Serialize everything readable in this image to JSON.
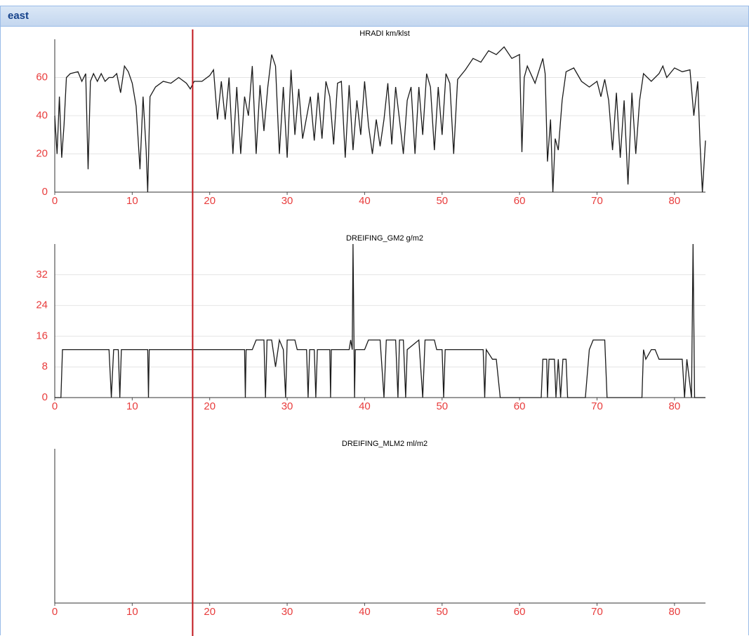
{
  "panel": {
    "title": "east"
  },
  "cursor_x": 17.8,
  "chart_data": [
    {
      "type": "line",
      "title": "HRADI km/klst",
      "x": [
        0,
        0.3,
        0.6,
        0.9,
        1.2,
        1.5,
        2,
        3,
        3.5,
        4,
        4.3,
        4.6,
        5,
        5.5,
        6,
        6.5,
        7,
        7.5,
        8,
        8.5,
        9,
        9.5,
        10,
        10.5,
        11,
        11.4,
        11.8,
        12,
        12.3,
        13,
        14,
        15,
        16,
        17,
        17.5,
        18,
        19,
        20,
        20.5,
        21,
        21.5,
        22,
        22.5,
        23,
        23.5,
        24,
        24.5,
        25,
        25.5,
        26,
        26.5,
        27,
        27.5,
        28,
        28.5,
        29,
        29.5,
        30,
        30.5,
        31,
        31.5,
        32,
        33,
        33.5,
        34,
        34.5,
        35,
        35.5,
        36,
        36.5,
        37,
        37.5,
        38,
        38.5,
        39,
        39.5,
        40,
        40.5,
        41,
        41.5,
        42,
        42.5,
        43,
        43.5,
        44,
        44.5,
        45,
        45.5,
        46,
        46.5,
        47,
        47.5,
        48,
        48.5,
        49,
        49.5,
        50,
        50.5,
        51,
        51.5,
        52,
        53,
        54,
        55,
        56,
        57,
        58,
        59,
        60,
        60.3,
        60.6,
        61,
        62,
        63,
        63.3,
        63.6,
        64,
        64.3,
        64.6,
        65,
        65.5,
        66,
        67,
        68,
        69,
        70,
        70.5,
        71,
        71.5,
        72,
        72.5,
        73,
        73.5,
        74,
        74.5,
        75,
        75.5,
        76,
        77,
        78,
        78.5,
        79,
        80,
        81,
        82,
        82.5,
        83,
        83.3,
        83.6,
        84
      ],
      "series": [
        {
          "name": "HRADI",
          "color": "#1a1a1a",
          "values": [
            40,
            20,
            50,
            18,
            35,
            60,
            62,
            63,
            58,
            62,
            12,
            58,
            62,
            58,
            62,
            58,
            60,
            60,
            62,
            52,
            66,
            63,
            57,
            45,
            12,
            50,
            22,
            0,
            50,
            55,
            58,
            57,
            60,
            57,
            54,
            58,
            58,
            61,
            64,
            38,
            58,
            38,
            60,
            20,
            55,
            20,
            50,
            40,
            66,
            20,
            56,
            32,
            55,
            72,
            66,
            20,
            55,
            18,
            64,
            30,
            54,
            28,
            50,
            27,
            52,
            28,
            58,
            50,
            25,
            57,
            58,
            18,
            56,
            22,
            48,
            30,
            58,
            35,
            20,
            38,
            24,
            38,
            57,
            25,
            55,
            38,
            20,
            48,
            55,
            20,
            55,
            30,
            62,
            55,
            22,
            55,
            30,
            62,
            57,
            20,
            59,
            64,
            70,
            68,
            74,
            72,
            76,
            70,
            72,
            21,
            60,
            66,
            57,
            70,
            62,
            16,
            38,
            0,
            28,
            22,
            48,
            63,
            65,
            58,
            55,
            58,
            50,
            59,
            48,
            22,
            52,
            18,
            48,
            4,
            52,
            20,
            48,
            62,
            58,
            62,
            66,
            60,
            65,
            63,
            64,
            40,
            58,
            25,
            0,
            27
          ]
        }
      ],
      "xlim": [
        0,
        84
      ],
      "xticks": [
        0,
        10,
        20,
        30,
        40,
        50,
        60,
        70,
        80
      ],
      "ylim": [
        0,
        80
      ],
      "yticks": [
        0,
        20,
        40,
        60
      ],
      "grid": true
    },
    {
      "type": "line",
      "title": "DREIFING_GM2 g/m2",
      "x": [
        0,
        0.8,
        1,
        7,
        7.3,
        7.6,
        8.2,
        8.4,
        8.6,
        12,
        12.1,
        12.2,
        24.5,
        24.6,
        24.7,
        25.5,
        26,
        27,
        27.2,
        27.4,
        28,
        28.5,
        29,
        29.5,
        29.8,
        30,
        31,
        31.3,
        32.5,
        32.7,
        32.9,
        33.5,
        33.7,
        33.9,
        35.5,
        35.6,
        35.7,
        38,
        38.2,
        38.4,
        38.5,
        38.7,
        38.8,
        40,
        40.5,
        42,
        42.5,
        42.8,
        44,
        44.3,
        44.5,
        45,
        45.3,
        45.5,
        47,
        47.5,
        47.8,
        49,
        49.3,
        50,
        50.2,
        50.4,
        55.3,
        55.5,
        55.7,
        56.5,
        57,
        57.5,
        62.8,
        63,
        63.5,
        63.6,
        63.8,
        64.5,
        64.7,
        65,
        65.3,
        65.6,
        66,
        66.2,
        68.5,
        69,
        69.5,
        71,
        71.3,
        75.8,
        76,
        76.3,
        77,
        77.5,
        78,
        81,
        81.3,
        81.6,
        82.2,
        82.4,
        82.6,
        84
      ],
      "series": [
        {
          "name": "DREIFING_GM2",
          "color": "#1a1a1a",
          "values": [
            0,
            0,
            12.5,
            12.5,
            0,
            12.5,
            12.5,
            0,
            12.5,
            12.5,
            0,
            12.5,
            12.5,
            0,
            12.5,
            12.5,
            15,
            15,
            0,
            15,
            15,
            8,
            15,
            12.5,
            0,
            15,
            15,
            12.5,
            12.5,
            0,
            12.5,
            12.5,
            0,
            12.5,
            12.5,
            0,
            12.5,
            12.5,
            15,
            12.5,
            40,
            0,
            12.5,
            12.5,
            15,
            15,
            0,
            15,
            15,
            0,
            15,
            15,
            0,
            12.5,
            15,
            0,
            15,
            15,
            12.5,
            12.5,
            0,
            12.5,
            12.5,
            0,
            12.5,
            10,
            10,
            0,
            0,
            10,
            10,
            0,
            10,
            10,
            0,
            10,
            0,
            10,
            10,
            0,
            0,
            12.5,
            15,
            15,
            0,
            0,
            12.5,
            10,
            12.5,
            12.5,
            10,
            10,
            0,
            10,
            0,
            40,
            0,
            0
          ]
        }
      ],
      "xlim": [
        0,
        84
      ],
      "xticks": [
        0,
        10,
        20,
        30,
        40,
        50,
        60,
        70,
        80
      ],
      "ylim": [
        0,
        40
      ],
      "yticks": [
        0,
        8,
        16,
        24,
        32
      ],
      "grid": true
    },
    {
      "type": "line",
      "title": "DREIFING_MLM2 ml/m2",
      "xlim": [
        0,
        84
      ],
      "xticks": [
        0,
        10,
        20,
        30,
        40,
        50,
        60,
        70,
        80
      ],
      "grid": true
    }
  ]
}
